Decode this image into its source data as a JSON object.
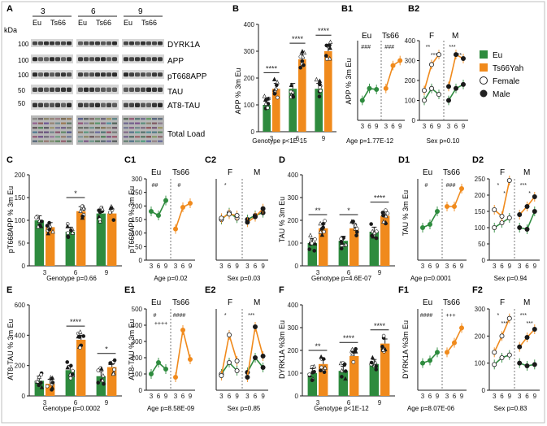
{
  "colors": {
    "eu": "#2e8b3e",
    "ts66": "#f08a1c",
    "ink": "#1a1a1a",
    "grid": "#999999"
  },
  "legend": {
    "items": [
      {
        "label": "Eu",
        "kind": "fill",
        "color": "#2e8b3e"
      },
      {
        "label": "Ts66Yah",
        "kind": "fill",
        "color": "#f08a1c"
      },
      {
        "label": "Female",
        "kind": "open"
      },
      {
        "label": "Male",
        "kind": "dot"
      }
    ]
  },
  "panels": {
    "A": {
      "label": "A",
      "kda_title": "kDa",
      "kda_marks": [
        "100",
        "100",
        "100",
        "50",
        "50"
      ],
      "ages": [
        "3",
        "6",
        "9"
      ],
      "groups": [
        "Eu",
        "Ts66",
        "Eu",
        "Ts66",
        "Eu",
        "Ts66"
      ],
      "bands": [
        "DYRK1A",
        "APP",
        "pT668APP",
        "TAU",
        "AT8-TAU",
        "Total Load"
      ]
    },
    "B": {
      "label": "B",
      "ylabel": "APP % 3m Eu",
      "footer": "Genotype p<1E-15"
    },
    "B1": {
      "label": "B1",
      "ylabel": "APP % 3m Eu",
      "footer": "Age p=1.77E-12",
      "g1": "Eu",
      "g2": "Ts66"
    },
    "B2": {
      "label": "B2",
      "footer": "Sex p=0.10",
      "g1": "F",
      "g2": "M"
    },
    "C": {
      "label": "C",
      "ylabel": "pT668APP % 3m Eu",
      "footer": "Genotype p=0.66"
    },
    "C1": {
      "label": "C1",
      "ylabel": "pT668APP % 3m Eu",
      "footer": "Age p=0.02",
      "g1": "Eu",
      "g2": "Ts66"
    },
    "C2": {
      "label": "C2",
      "footer": "Sex p=0.03",
      "g1": "F",
      "g2": "M"
    },
    "D": {
      "label": "D",
      "ylabel": "TAU % 3m Eu",
      "footer": "Genotype p=4.6E-07"
    },
    "D1": {
      "label": "D1",
      "ylabel": "TAU % 3m Eu",
      "footer": "Age p=0.0001",
      "g1": "Eu",
      "g2": "Ts66"
    },
    "D2": {
      "label": "D2",
      "footer": "Sex p=0.94",
      "g1": "F",
      "g2": "M"
    },
    "E": {
      "label": "E",
      "ylabel": "AT8-TAU % 3m Eu",
      "footer": "Genotype p=0.0002"
    },
    "E1": {
      "label": "E1",
      "ylabel": "AT8-TAU % 3m Eu",
      "footer": "Age p=8.58E-09",
      "g1": "Eu",
      "g2": "Ts66"
    },
    "E2": {
      "label": "E2",
      "footer": "Sex p=0.85",
      "g1": "F",
      "g2": "M"
    },
    "F": {
      "label": "F",
      "ylabel": "DYRK1A %3m Eu",
      "footer": "Genotype p<1E-12"
    },
    "F1": {
      "label": "F1",
      "ylabel": "DYRK1A %3m Eu",
      "footer": "Age p=8.07E-06",
      "g1": "Eu",
      "g2": "Ts66"
    },
    "F2": {
      "label": "F2",
      "footer": "Sex p=0.83",
      "g1": "F",
      "g2": "M"
    }
  },
  "chart_data": [
    {
      "id": "B",
      "type": "bar",
      "categories": [
        "3",
        "6",
        "9"
      ],
      "yticks": [
        0,
        100,
        200,
        300,
        400
      ],
      "ylim": [
        0,
        400
      ],
      "series": [
        {
          "name": "Eu",
          "values": [
            100,
            160,
            160
          ]
        },
        {
          "name": "Ts66Yah",
          "values": [
            160,
            270,
            300
          ]
        }
      ],
      "sig": [
        "****",
        "****",
        "****"
      ]
    },
    {
      "id": "C",
      "type": "bar",
      "categories": [
        "3",
        "6",
        "9"
      ],
      "yticks": [
        0,
        50,
        100,
        150,
        200
      ],
      "ylim": [
        0,
        200
      ],
      "series": [
        {
          "name": "Eu",
          "values": [
            100,
            75,
            115
          ]
        },
        {
          "name": "Ts66Yah",
          "values": [
            85,
            120,
            115
          ]
        }
      ],
      "sig": [
        "",
        "*",
        ""
      ]
    },
    {
      "id": "D",
      "type": "bar",
      "categories": [
        "3",
        "6",
        "9"
      ],
      "yticks": [
        0,
        100,
        200,
        300,
        400
      ],
      "ylim": [
        0,
        400
      ],
      "series": [
        {
          "name": "Eu",
          "values": [
            100,
            110,
            150
          ]
        },
        {
          "name": "Ts66Yah",
          "values": [
            165,
            165,
            220
          ]
        }
      ],
      "sig": [
        "**",
        "*",
        "****"
      ]
    },
    {
      "id": "E",
      "type": "bar",
      "categories": [
        "3",
        "6",
        "9"
      ],
      "yticks": [
        0,
        200,
        400,
        600
      ],
      "ylim": [
        0,
        600
      ],
      "series": [
        {
          "name": "Eu",
          "values": [
            100,
            170,
            130
          ]
        },
        {
          "name": "Ts66Yah",
          "values": [
            80,
            370,
            190
          ]
        }
      ],
      "sig": [
        "",
        "****",
        "*"
      ]
    },
    {
      "id": "F",
      "type": "bar",
      "categories": [
        "3",
        "6",
        "9"
      ],
      "yticks": [
        0,
        100,
        200,
        300,
        400
      ],
      "ylim": [
        0,
        400
      ],
      "series": [
        {
          "name": "Eu",
          "values": [
            100,
            110,
            140
          ]
        },
        {
          "name": "Ts66Yah",
          "values": [
            140,
            175,
            230
          ]
        }
      ],
      "sig": [
        "**",
        "****",
        "****"
      ]
    },
    {
      "id": "B1",
      "type": "line",
      "x": [
        "3",
        "6",
        "9"
      ],
      "yticks": [],
      "ylim": [
        0,
        400
      ],
      "series": [
        {
          "name": "Eu",
          "values": [
            100,
            160,
            155
          ]
        },
        {
          "name": "Ts66Yah",
          "values": [
            160,
            275,
            300
          ]
        }
      ],
      "marks": [
        "###",
        "###"
      ]
    },
    {
      "id": "B2",
      "type": "line",
      "x": [
        "3",
        "6",
        "9"
      ],
      "yticks": [
        0,
        100,
        200,
        300,
        400
      ],
      "ylim": [
        0,
        400
      ],
      "series": [
        {
          "name": "F Eu",
          "values": [
            100,
            160,
            130
          ]
        },
        {
          "name": "F Ts66Yah",
          "values": [
            150,
            280,
            330
          ]
        },
        {
          "name": "M Eu",
          "values": [
            100,
            160,
            180
          ]
        },
        {
          "name": "M Ts66Yah",
          "values": [
            170,
            330,
            310
          ]
        }
      ],
      "marks": [
        "**",
        "***",
        "***",
        "***"
      ]
    },
    {
      "id": "C1",
      "type": "line",
      "x": [
        "3",
        "6",
        "9"
      ],
      "yticks": [
        0,
        50,
        100,
        150,
        200,
        250,
        300
      ],
      "ylim": [
        0,
        300
      ],
      "series": [
        {
          "name": "Eu",
          "values": [
            180,
            165,
            220
          ]
        },
        {
          "name": "Ts66Yah",
          "values": [
            115,
            195,
            210
          ]
        }
      ],
      "marks": [
        "##",
        "#"
      ]
    },
    {
      "id": "C2",
      "type": "line",
      "x": [
        "3",
        "6",
        "9"
      ],
      "yticks": [],
      "ylim": [
        0,
        300
      ],
      "series": [
        {
          "name": "F Eu",
          "values": [
            150,
            175,
            155
          ]
        },
        {
          "name": "F Ts66Yah",
          "values": [
            155,
            170,
            165
          ]
        },
        {
          "name": "M Eu",
          "values": [
            150,
            165,
            175
          ]
        },
        {
          "name": "M Ts66Yah",
          "values": [
            140,
            160,
            190
          ]
        }
      ],
      "marks": [
        "*"
      ]
    },
    {
      "id": "D1",
      "type": "line",
      "x": [
        "3",
        "6",
        "9"
      ],
      "yticks": [],
      "ylim": [
        0,
        250
      ],
      "series": [
        {
          "name": "Eu",
          "values": [
            100,
            110,
            150
          ]
        },
        {
          "name": "Ts66Yah",
          "values": [
            165,
            165,
            220
          ]
        }
      ],
      "marks": [
        "#",
        "###"
      ]
    },
    {
      "id": "D2",
      "type": "line",
      "x": [
        "3",
        "6",
        "9"
      ],
      "yticks": [
        0,
        50,
        100,
        150,
        200,
        250
      ],
      "ylim": [
        0,
        250
      ],
      "series": [
        {
          "name": "F Eu",
          "values": [
            100,
            115,
            130
          ]
        },
        {
          "name": "F Ts66Yah",
          "values": [
            155,
            135,
            245
          ]
        },
        {
          "name": "M Eu",
          "values": [
            100,
            95,
            150
          ]
        },
        {
          "name": "M Ts66Yah",
          "values": [
            140,
            165,
            195
          ]
        }
      ],
      "marks": [
        "*",
        "***",
        "*",
        "*"
      ]
    },
    {
      "id": "E1",
      "type": "line",
      "x": [
        "3",
        "6",
        "9"
      ],
      "yticks": [
        0,
        100,
        200,
        300,
        400,
        500
      ],
      "ylim": [
        0,
        500
      ],
      "series": [
        {
          "name": "Eu",
          "values": [
            100,
            170,
            130
          ]
        },
        {
          "name": "Ts66Yah",
          "values": [
            80,
            370,
            190
          ]
        }
      ],
      "marks": [
        "#",
        "####",
        "++++"
      ]
    },
    {
      "id": "E2",
      "type": "line",
      "x": [
        "3",
        "6",
        "9"
      ],
      "yticks": [],
      "ylim": [
        0,
        500
      ],
      "series": [
        {
          "name": "F Eu",
          "values": [
            100,
            170,
            120
          ]
        },
        {
          "name": "F Ts66Yah",
          "values": [
            90,
            340,
            180
          ]
        },
        {
          "name": "M Eu",
          "values": [
            110,
            200,
            140
          ]
        },
        {
          "name": "M Ts66Yah",
          "values": [
            80,
            390,
            210
          ]
        }
      ],
      "marks": [
        "*",
        "***"
      ]
    },
    {
      "id": "F1",
      "type": "line",
      "x": [
        "3",
        "6",
        "9"
      ],
      "yticks": [],
      "ylim": [
        0,
        300
      ],
      "series": [
        {
          "name": "Eu",
          "values": [
            100,
            110,
            140
          ]
        },
        {
          "name": "Ts66Yah",
          "values": [
            140,
            175,
            230
          ]
        }
      ],
      "marks": [
        "####",
        "+++"
      ]
    },
    {
      "id": "F2",
      "type": "line",
      "x": [
        "3",
        "6",
        "9"
      ],
      "yticks": [
        0,
        100,
        200,
        300
      ],
      "ylim": [
        0,
        300
      ],
      "series": [
        {
          "name": "F Eu",
          "values": [
            95,
            120,
            130
          ]
        },
        {
          "name": "F Ts66Yah",
          "values": [
            140,
            200,
            265
          ]
        },
        {
          "name": "M Eu",
          "values": [
            100,
            90,
            95
          ]
        },
        {
          "name": "M Ts66Yah",
          "values": [
            160,
            195,
            225
          ]
        }
      ],
      "marks": [
        "*",
        "***",
        "***",
        "***"
      ]
    }
  ]
}
